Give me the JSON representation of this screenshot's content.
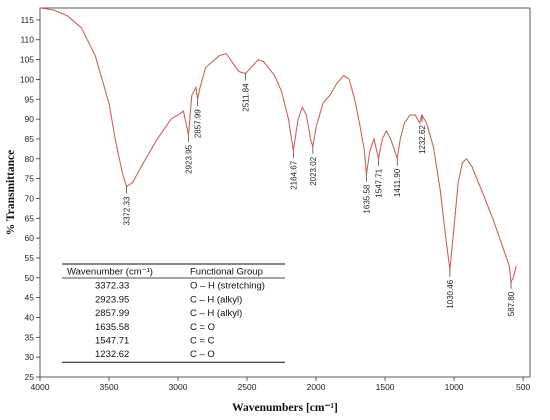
{
  "chart_data": {
    "type": "line",
    "xlabel": "Wavenumbers  [cm⁻¹]",
    "ylabel": "% Transmittance",
    "xlim": [
      4000,
      450
    ],
    "ylim": [
      25,
      118
    ],
    "x_reversed": true,
    "xticks": [
      4000,
      3500,
      3000,
      2500,
      2000,
      1500,
      1000,
      500
    ],
    "yticks": [
      25,
      30,
      35,
      40,
      45,
      50,
      55,
      60,
      65,
      70,
      75,
      80,
      85,
      90,
      95,
      100,
      105,
      110,
      115
    ],
    "grid": false,
    "line_color": "#c8645a",
    "series": [
      {
        "points": [
          [
            4000,
            118
          ],
          [
            3900,
            117.5
          ],
          [
            3800,
            116
          ],
          [
            3700,
            113
          ],
          [
            3600,
            106
          ],
          [
            3500,
            94
          ],
          [
            3450,
            84
          ],
          [
            3400,
            76
          ],
          [
            3372.33,
            73
          ],
          [
            3330,
            74
          ],
          [
            3250,
            79
          ],
          [
            3150,
            85
          ],
          [
            3050,
            90
          ],
          [
            2960,
            92
          ],
          [
            2923.95,
            86
          ],
          [
            2900,
            96
          ],
          [
            2870,
            98
          ],
          [
            2857.99,
            95
          ],
          [
            2840,
            98
          ],
          [
            2800,
            103
          ],
          [
            2700,
            106
          ],
          [
            2650,
            106.5
          ],
          [
            2600,
            104
          ],
          [
            2560,
            102
          ],
          [
            2511.84,
            101.5
          ],
          [
            2470,
            103
          ],
          [
            2420,
            105
          ],
          [
            2380,
            104.5
          ],
          [
            2300,
            101
          ],
          [
            2250,
            97
          ],
          [
            2200,
            90
          ],
          [
            2164.67,
            82
          ],
          [
            2130,
            90
          ],
          [
            2100,
            93
          ],
          [
            2070,
            91
          ],
          [
            2040,
            85
          ],
          [
            2023.02,
            83
          ],
          [
            2000,
            88
          ],
          [
            1950,
            94
          ],
          [
            1900,
            96
          ],
          [
            1850,
            99
          ],
          [
            1800,
            101
          ],
          [
            1760,
            100
          ],
          [
            1720,
            95
          ],
          [
            1680,
            88
          ],
          [
            1650,
            82
          ],
          [
            1635.58,
            76
          ],
          [
            1610,
            82
          ],
          [
            1580,
            85
          ],
          [
            1547.71,
            80
          ],
          [
            1520,
            85
          ],
          [
            1490,
            87
          ],
          [
            1460,
            85
          ],
          [
            1430,
            82
          ],
          [
            1411.9,
            80
          ],
          [
            1390,
            85
          ],
          [
            1360,
            89
          ],
          [
            1320,
            91
          ],
          [
            1280,
            91
          ],
          [
            1250,
            89
          ],
          [
            1232.62,
            91
          ],
          [
            1200,
            89
          ],
          [
            1150,
            83
          ],
          [
            1100,
            72
          ],
          [
            1060,
            60
          ],
          [
            1030.46,
            52
          ],
          [
            1000,
            63
          ],
          [
            970,
            74
          ],
          [
            940,
            79
          ],
          [
            910,
            80
          ],
          [
            870,
            78
          ],
          [
            800,
            72
          ],
          [
            720,
            65
          ],
          [
            650,
            58
          ],
          [
            600,
            53
          ],
          [
            587.8,
            49
          ],
          [
            570,
            50
          ],
          [
            550,
            53
          ]
        ]
      }
    ],
    "peaks": [
      {
        "x": 3372.33,
        "label": "3372.33",
        "y_at": 73
      },
      {
        "x": 2923.95,
        "label": "2923.95",
        "y_at": 86
      },
      {
        "x": 2857.99,
        "label": "2857.99",
        "y_at": 95
      },
      {
        "x": 2511.84,
        "label": "2511.84",
        "y_at": 101.5
      },
      {
        "x": 2164.67,
        "label": "2164.67",
        "y_at": 82
      },
      {
        "x": 2023.02,
        "label": "2023.02",
        "y_at": 83
      },
      {
        "x": 1635.58,
        "label": "1635.58",
        "y_at": 76
      },
      {
        "x": 1547.71,
        "label": "1547.71",
        "y_at": 80
      },
      {
        "x": 1411.9,
        "label": "1411.90",
        "y_at": 80
      },
      {
        "x": 1232.62,
        "label": "1232.62",
        "y_at": 91
      },
      {
        "x": 1030.46,
        "label": "1030.46",
        "y_at": 52
      },
      {
        "x": 587.8,
        "label": "587.80",
        "y_at": 49
      }
    ],
    "table": {
      "headers": [
        "Wavenumber (cm⁻¹)",
        "Functional Group"
      ],
      "rows": [
        [
          "3372.33",
          "O – H (stretching)"
        ],
        [
          "2923.95",
          "C – H (alkyl)"
        ],
        [
          "2857.99",
          "C – H (alkyl)"
        ],
        [
          "1635.58",
          "C = O"
        ],
        [
          "1547.71",
          "C = C"
        ],
        [
          "1232.62",
          "C – O"
        ]
      ]
    }
  }
}
